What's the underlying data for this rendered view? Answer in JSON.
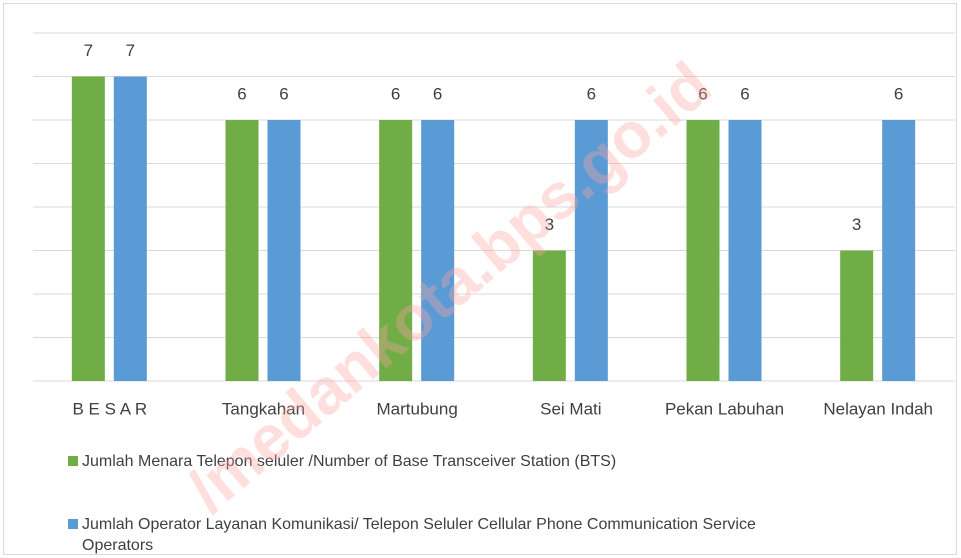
{
  "chart_data": {
    "type": "bar",
    "watermark": "/medankota.bps.go.id",
    "categories": [
      "B E S A R",
      "Tangkahan",
      "Martubung",
      "Sei Mati",
      "Pekan Labuhan",
      "Nelayan Indah"
    ],
    "series": [
      {
        "name": "Jumlah Menara Telepon seluler /Number of Base Transceiver Station (BTS)",
        "color": "#70ad47",
        "values": [
          7,
          6,
          6,
          3,
          6,
          3
        ]
      },
      {
        "name": "Jumlah Operator Layanan Komunikasi/ Telepon Seluler Cellular Phone Communication Service Operators",
        "color": "#5b9bd5",
        "values": [
          7,
          6,
          6,
          6,
          6,
          6
        ]
      }
    ],
    "ylim": [
      0,
      8
    ],
    "yticks": [
      0,
      1,
      2,
      3,
      4,
      5,
      6,
      7,
      8
    ],
    "grid": true
  }
}
